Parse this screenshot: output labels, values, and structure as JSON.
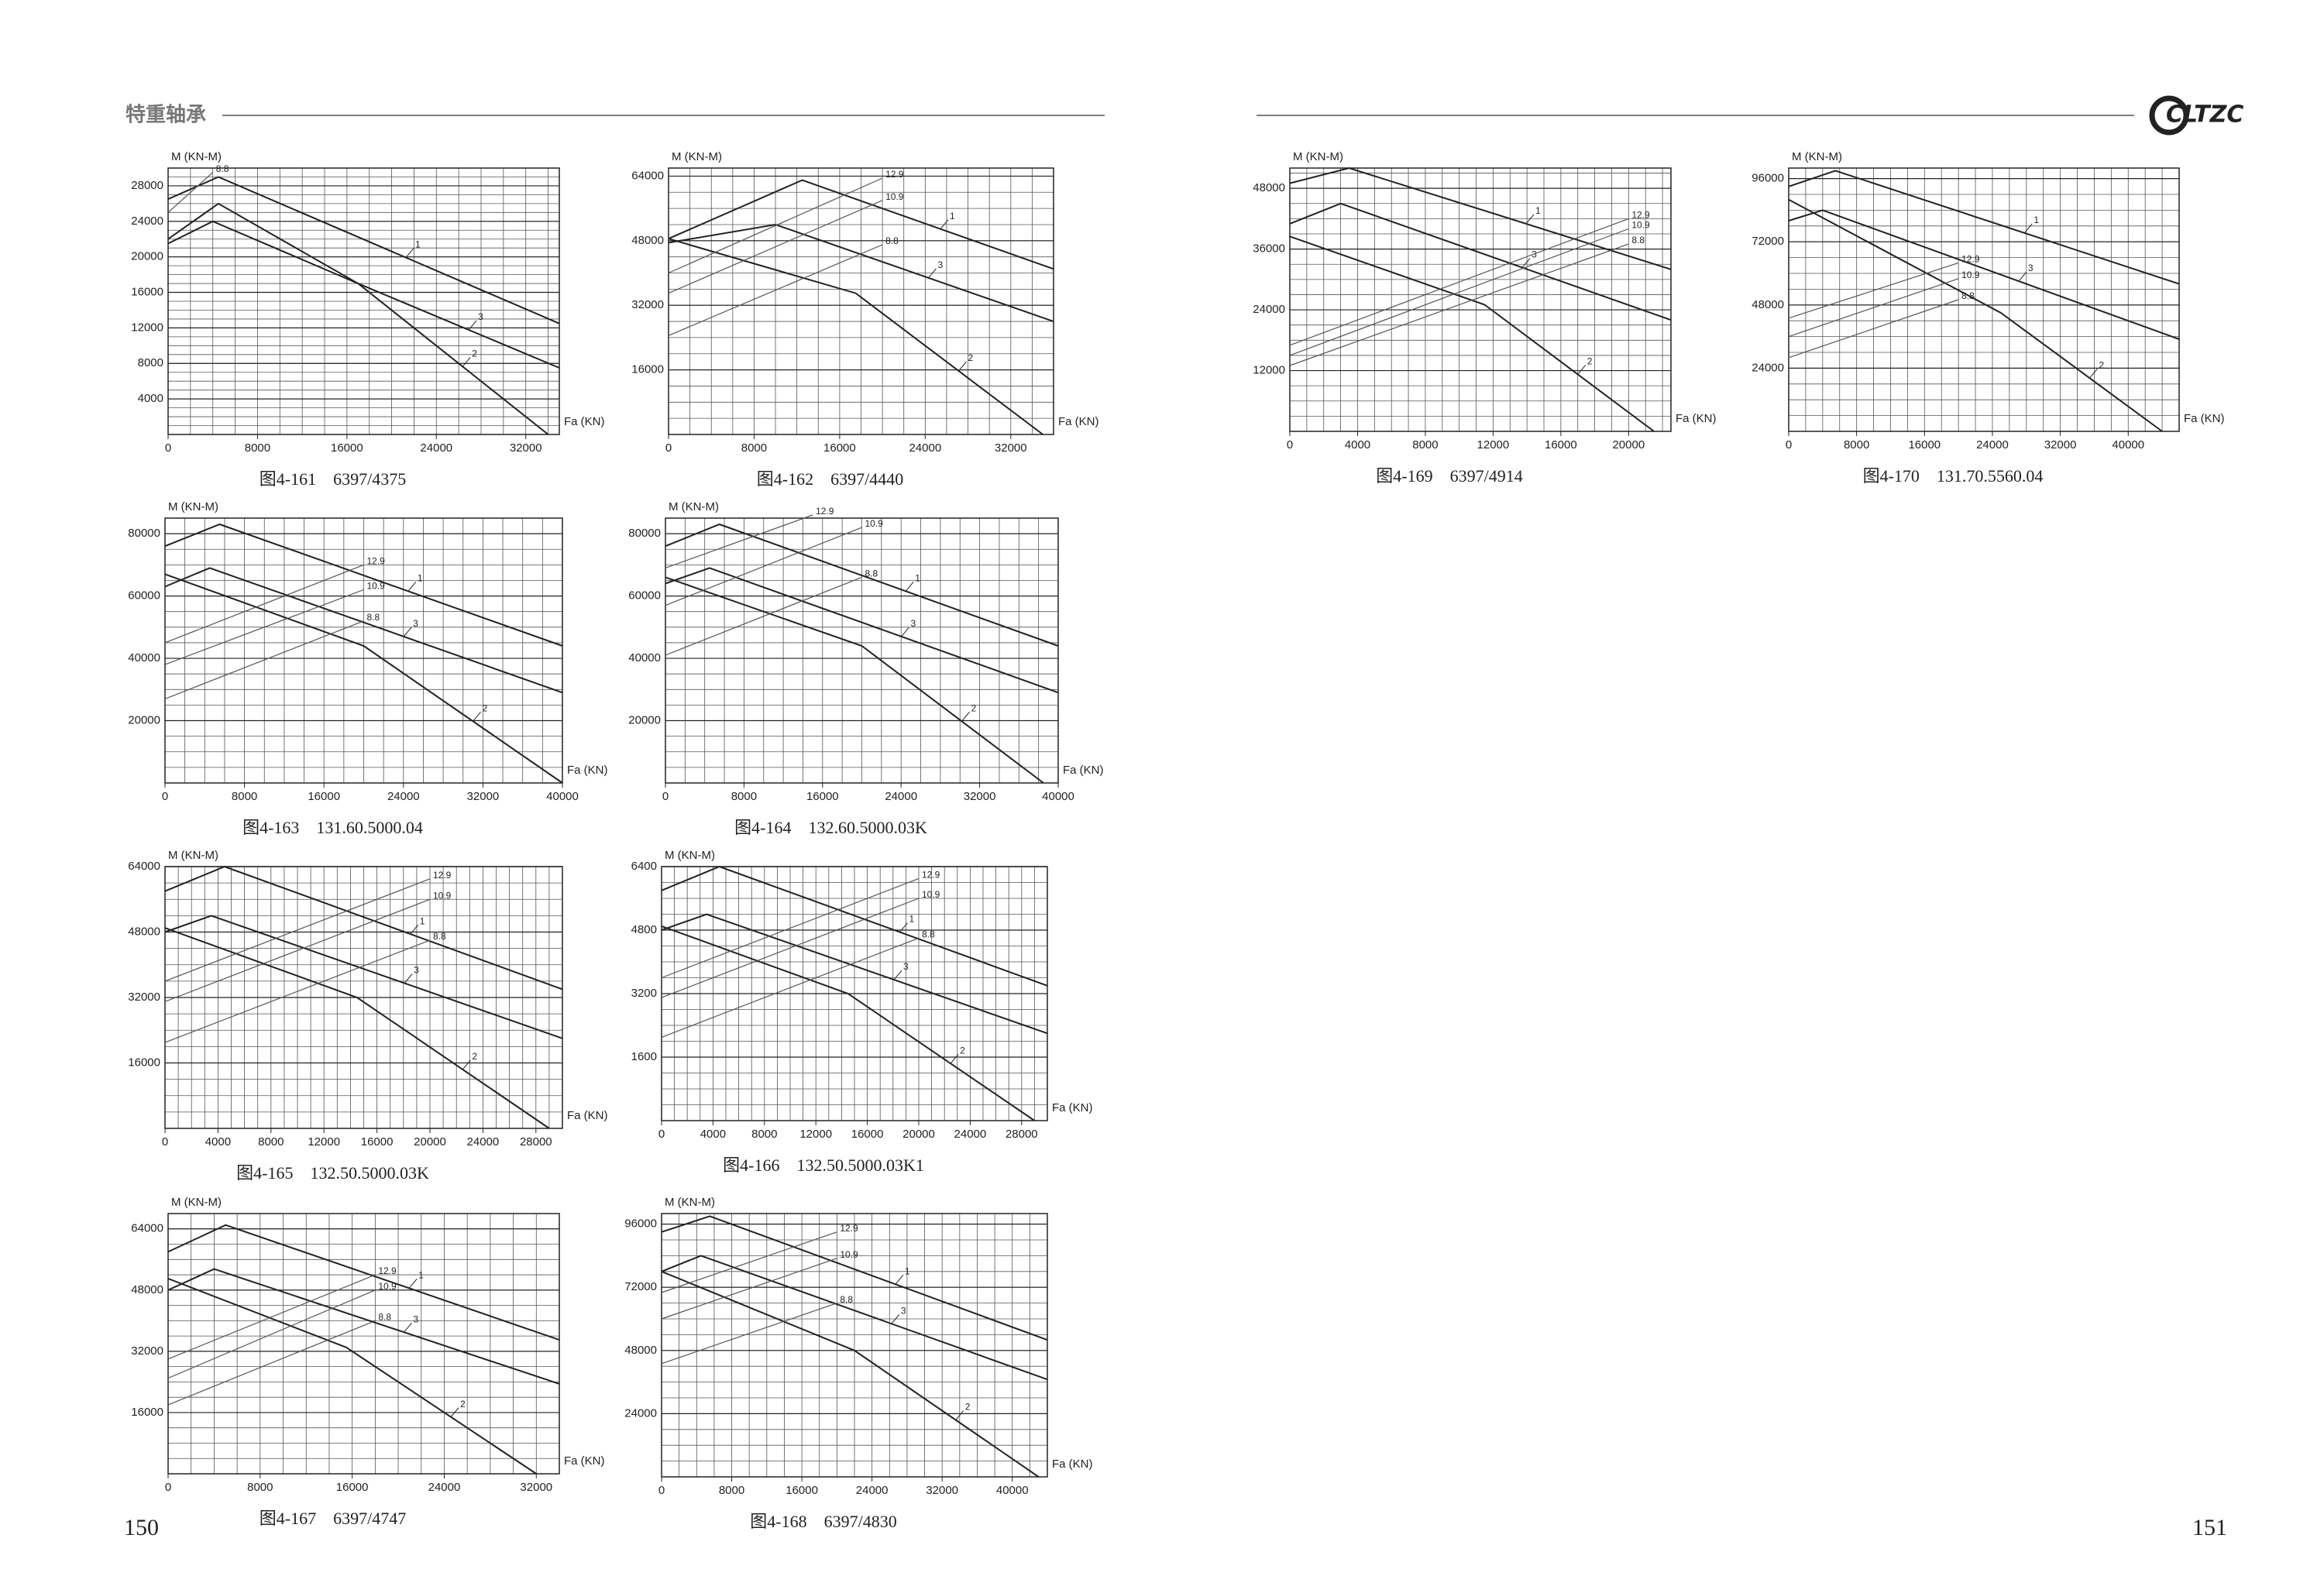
{
  "header": {
    "title": "特重轴承",
    "logo": "CLTZC"
  },
  "page_numbers": [
    "150",
    "151"
  ],
  "chart_data": [
    {
      "type": "line",
      "title": "图4-161　6397/4375",
      "y_label": "M (KN-M)",
      "x_label": "Fa (KN)",
      "xlim": [
        0,
        35000
      ],
      "xticks": [
        0,
        8000,
        16000,
        24000,
        32000
      ],
      "ylim": [
        0,
        30000
      ],
      "yticks": [
        4000,
        8000,
        12000,
        16000,
        20000,
        24000,
        28000
      ],
      "grid": true,
      "series": [
        {
          "name": "1",
          "color": "#222",
          "x": [
            0,
            4500,
            35000
          ],
          "values": [
            26500,
            29000,
            12500
          ]
        },
        {
          "name": "3",
          "color": "#222",
          "x": [
            0,
            4500,
            17000,
            35000
          ],
          "values": [
            22000,
            26000,
            17000,
            7500
          ]
        },
        {
          "name": "2",
          "color": "#222",
          "x": [
            0,
            4000,
            17000,
            34000
          ],
          "values": [
            21500,
            24000,
            17000,
            0
          ]
        },
        {
          "name": "8.8",
          "color": "#555",
          "x": [
            0,
            4000
          ],
          "values": [
            25000,
            29500
          ]
        }
      ]
    },
    {
      "type": "line",
      "title": "图4-162　6397/4440",
      "y_label": "M (KN-M)",
      "x_label": "Fa (KN)",
      "xlim": [
        0,
        36000
      ],
      "xticks": [
        0,
        8000,
        16000,
        24000,
        32000
      ],
      "ylim": [
        0,
        66000
      ],
      "yticks": [
        16000,
        32000,
        48000,
        64000
      ],
      "grid": true,
      "series": [
        {
          "name": "1",
          "color": "#222",
          "x": [
            0,
            12500,
            36000
          ],
          "values": [
            48500,
            63000,
            41000
          ]
        },
        {
          "name": "3",
          "color": "#222",
          "x": [
            0,
            10000,
            36000
          ],
          "values": [
            47500,
            52000,
            28000
          ]
        },
        {
          "name": "2",
          "color": "#222",
          "x": [
            0,
            17500,
            35000
          ],
          "values": [
            48500,
            35000,
            0
          ]
        },
        {
          "name": "12.9",
          "color": "#555",
          "x": [
            0,
            20000
          ],
          "values": [
            40000,
            63500
          ]
        },
        {
          "name": "10.9",
          "color": "#555",
          "x": [
            0,
            20000
          ],
          "values": [
            35000,
            58000
          ]
        },
        {
          "name": "8.8",
          "color": "#555",
          "x": [
            0,
            20000
          ],
          "values": [
            24500,
            47000
          ]
        }
      ]
    },
    {
      "type": "line",
      "title": "图4-163　131.60.5000.04",
      "y_label": "M (KN-M)",
      "x_label": "Fa (KN)",
      "xlim": [
        0,
        40000
      ],
      "xticks": [
        0,
        8000,
        16000,
        24000,
        32000,
        40000
      ],
      "ylim": [
        0,
        85000
      ],
      "yticks": [
        20000,
        40000,
        60000,
        80000
      ],
      "grid": true,
      "series": [
        {
          "name": "1",
          "color": "#222",
          "x": [
            0,
            5500,
            40000
          ],
          "values": [
            76000,
            83000,
            44000
          ]
        },
        {
          "name": "3",
          "color": "#222",
          "x": [
            0,
            4500,
            40000
          ],
          "values": [
            63000,
            69000,
            29000
          ]
        },
        {
          "name": "2",
          "color": "#222",
          "x": [
            0,
            20000,
            40000
          ],
          "values": [
            67000,
            44000,
            0
          ]
        },
        {
          "name": "12.9",
          "color": "#555",
          "x": [
            0,
            20000
          ],
          "values": [
            45000,
            70000
          ]
        },
        {
          "name": "10.9",
          "color": "#555",
          "x": [
            0,
            20000
          ],
          "values": [
            38000,
            62000
          ]
        },
        {
          "name": "8.8",
          "color": "#555",
          "x": [
            0,
            20000
          ],
          "values": [
            27000,
            52000
          ]
        }
      ]
    },
    {
      "type": "line",
      "title": "图4-164　132.60.5000.03K",
      "y_label": "M (KN-M)",
      "x_label": "Fa (KN)",
      "xlim": [
        0,
        40000
      ],
      "xticks": [
        0,
        8000,
        16000,
        24000,
        32000,
        40000
      ],
      "ylim": [
        0,
        85000
      ],
      "yticks": [
        20000,
        40000,
        60000,
        80000
      ],
      "grid": true,
      "series": [
        {
          "name": "1",
          "color": "#222",
          "x": [
            0,
            5500,
            40000
          ],
          "values": [
            76000,
            83000,
            44000
          ]
        },
        {
          "name": "3",
          "color": "#222",
          "x": [
            0,
            4500,
            40000
          ],
          "values": [
            64000,
            69000,
            29000
          ]
        },
        {
          "name": "2",
          "color": "#222",
          "x": [
            0,
            20000,
            38500
          ],
          "values": [
            66000,
            44000,
            0
          ]
        },
        {
          "name": "12.9",
          "color": "#555",
          "x": [
            0,
            15000
          ],
          "values": [
            69000,
            86000
          ]
        },
        {
          "name": "10.9",
          "color": "#555",
          "x": [
            0,
            20000
          ],
          "values": [
            57000,
            82000
          ]
        },
        {
          "name": "8.8",
          "color": "#555",
          "x": [
            0,
            20000
          ],
          "values": [
            41000,
            66000
          ]
        }
      ]
    },
    {
      "type": "line",
      "title": "图4-165　132.50.5000.03K",
      "y_label": "M (KN-M)",
      "x_label": "Fa (KN)",
      "xlim": [
        0,
        30000
      ],
      "xticks": [
        0,
        4000,
        8000,
        12000,
        16000,
        20000,
        24000,
        28000
      ],
      "ylim": [
        0,
        64000
      ],
      "yticks": [
        16000,
        32000,
        48000,
        64000
      ],
      "grid": true,
      "series": [
        {
          "name": "1",
          "color": "#222",
          "x": [
            0,
            4500,
            30000
          ],
          "values": [
            58000,
            64000,
            34000
          ]
        },
        {
          "name": "3",
          "color": "#222",
          "x": [
            0,
            3500,
            30000
          ],
          "values": [
            48000,
            52000,
            22000
          ]
        },
        {
          "name": "2",
          "color": "#222",
          "x": [
            0,
            14500,
            29000
          ],
          "values": [
            49000,
            32000,
            0
          ]
        },
        {
          "name": "12.9",
          "color": "#555",
          "x": [
            0,
            20000
          ],
          "values": [
            36000,
            61000
          ]
        },
        {
          "name": "10.9",
          "color": "#555",
          "x": [
            0,
            20000
          ],
          "values": [
            31000,
            56000
          ]
        },
        {
          "name": "8.8",
          "color": "#555",
          "x": [
            0,
            20000
          ],
          "values": [
            21000,
            46000
          ]
        }
      ]
    },
    {
      "type": "line",
      "title": "图4-166　132.50.5000.03K1",
      "y_label": "M (KN-M)",
      "x_label": "Fa (KN)",
      "xlim": [
        0,
        30000
      ],
      "xticks": [
        0,
        4000,
        8000,
        12000,
        16000,
        20000,
        24000,
        28000
      ],
      "ylim": [
        0,
        6400
      ],
      "yticks": [
        1600,
        3200,
        4800,
        6400
      ],
      "grid": true,
      "series": [
        {
          "name": "1",
          "color": "#222",
          "x": [
            0,
            4500,
            30000
          ],
          "values": [
            5800,
            6400,
            3400
          ]
        },
        {
          "name": "3",
          "color": "#222",
          "x": [
            0,
            3500,
            30000
          ],
          "values": [
            4800,
            5200,
            2200
          ]
        },
        {
          "name": "2",
          "color": "#222",
          "x": [
            0,
            14500,
            29000
          ],
          "values": [
            4900,
            3200,
            0
          ]
        },
        {
          "name": "12.9",
          "color": "#555",
          "x": [
            0,
            20000
          ],
          "values": [
            3600,
            6100
          ]
        },
        {
          "name": "10.9",
          "color": "#555",
          "x": [
            0,
            20000
          ],
          "values": [
            3100,
            5600
          ]
        },
        {
          "name": "8.8",
          "color": "#555",
          "x": [
            0,
            20000
          ],
          "values": [
            2100,
            4600
          ]
        }
      ]
    },
    {
      "type": "line",
      "title": "图4-167　6397/4747",
      "y_label": "M (KN-M)",
      "x_label": "Fa (KN)",
      "xlim": [
        0,
        34000
      ],
      "xticks": [
        0,
        8000,
        16000,
        24000,
        32000
      ],
      "ylim": [
        0,
        68000
      ],
      "yticks": [
        16000,
        32000,
        48000,
        64000
      ],
      "grid": true,
      "series": [
        {
          "name": "1",
          "color": "#222",
          "x": [
            0,
            5000,
            34000
          ],
          "values": [
            58000,
            65000,
            35000
          ]
        },
        {
          "name": "3",
          "color": "#222",
          "x": [
            0,
            4000,
            34000
          ],
          "values": [
            48000,
            53500,
            23500
          ]
        },
        {
          "name": "2",
          "color": "#222",
          "x": [
            0,
            15500,
            32000
          ],
          "values": [
            51000,
            33000,
            0
          ]
        },
        {
          "name": "12.9",
          "color": "#555",
          "x": [
            0,
            18000
          ],
          "values": [
            30000,
            52000
          ]
        },
        {
          "name": "10.9",
          "color": "#555",
          "x": [
            0,
            18000
          ],
          "values": [
            25000,
            48000
          ]
        },
        {
          "name": "8.8",
          "color": "#555",
          "x": [
            0,
            18000
          ],
          "values": [
            18000,
            40000
          ]
        }
      ]
    },
    {
      "type": "line",
      "title": "图4-168　6397/4830",
      "y_label": "M (KN-M)",
      "x_label": "Fa (KN)",
      "xlim": [
        0,
        44000
      ],
      "xticks": [
        0,
        8000,
        16000,
        24000,
        32000,
        40000
      ],
      "ylim": [
        0,
        100000
      ],
      "yticks": [
        24000,
        48000,
        72000,
        96000
      ],
      "grid": true,
      "series": [
        {
          "name": "1",
          "color": "#222",
          "x": [
            0,
            5500,
            44000
          ],
          "values": [
            93000,
            99000,
            52000
          ]
        },
        {
          "name": "3",
          "color": "#222",
          "x": [
            0,
            4500,
            44000
          ],
          "values": [
            78000,
            84000,
            37000
          ]
        },
        {
          "name": "2",
          "color": "#222",
          "x": [
            0,
            22000,
            43000
          ],
          "values": [
            78000,
            48000,
            0
          ]
        },
        {
          "name": "12.9",
          "color": "#555",
          "x": [
            0,
            20000
          ],
          "values": [
            70000,
            93000
          ]
        },
        {
          "name": "10.9",
          "color": "#555",
          "x": [
            0,
            20000
          ],
          "values": [
            60000,
            83000
          ]
        },
        {
          "name": "8.8",
          "color": "#555",
          "x": [
            0,
            20000
          ],
          "values": [
            43000,
            66000
          ]
        }
      ]
    },
    {
      "type": "line",
      "title": "图4-169　6397/4914",
      "y_label": "M (KN-M)",
      "x_label": "Fa (KN)",
      "xlim": [
        0,
        22500
      ],
      "xticks": [
        0,
        4000,
        8000,
        12000,
        16000,
        20000
      ],
      "ylim": [
        0,
        52000
      ],
      "yticks": [
        12000,
        24000,
        36000,
        48000
      ],
      "grid": true,
      "series": [
        {
          "name": "1",
          "color": "#222",
          "x": [
            0,
            3500,
            22500
          ],
          "values": [
            49000,
            52000,
            32000
          ]
        },
        {
          "name": "3",
          "color": "#222",
          "x": [
            0,
            3000,
            22500
          ],
          "values": [
            41000,
            45000,
            22000
          ]
        },
        {
          "name": "2",
          "color": "#222",
          "x": [
            0,
            11500,
            21500
          ],
          "values": [
            38500,
            25000,
            0
          ]
        },
        {
          "name": "12.9",
          "color": "#555",
          "x": [
            0,
            20000
          ],
          "values": [
            17000,
            42000
          ]
        },
        {
          "name": "10.9",
          "color": "#555",
          "x": [
            0,
            20000
          ],
          "values": [
            15000,
            40000
          ]
        },
        {
          "name": "8.8",
          "color": "#555",
          "x": [
            0,
            20000
          ],
          "values": [
            13000,
            37000
          ]
        }
      ]
    },
    {
      "type": "line",
      "title": "图4-170　131.70.5560.04",
      "y_label": "M (KN-M)",
      "x_label": "Fa (KN)",
      "xlim": [
        0,
        46000
      ],
      "xticks": [
        0,
        8000,
        16000,
        24000,
        32000,
        40000
      ],
      "ylim": [
        0,
        100000
      ],
      "yticks": [
        24000,
        48000,
        72000,
        96000
      ],
      "grid": true,
      "series": [
        {
          "name": "1",
          "color": "#222",
          "x": [
            0,
            5500,
            46000
          ],
          "values": [
            93000,
            99000,
            56000
          ]
        },
        {
          "name": "3",
          "color": "#222",
          "x": [
            0,
            4000,
            46000
          ],
          "values": [
            80000,
            84000,
            35000
          ]
        },
        {
          "name": "2",
          "color": "#222",
          "x": [
            0,
            25000,
            44000
          ],
          "values": [
            88000,
            45000,
            0
          ]
        },
        {
          "name": "12.9",
          "color": "#555",
          "x": [
            0,
            20000
          ],
          "values": [
            43000,
            64000
          ]
        },
        {
          "name": "10.9",
          "color": "#555",
          "x": [
            0,
            20000
          ],
          "values": [
            36000,
            58000
          ]
        },
        {
          "name": "8.8",
          "color": "#555",
          "x": [
            0,
            20000
          ],
          "values": [
            28000,
            50000
          ]
        }
      ]
    }
  ]
}
